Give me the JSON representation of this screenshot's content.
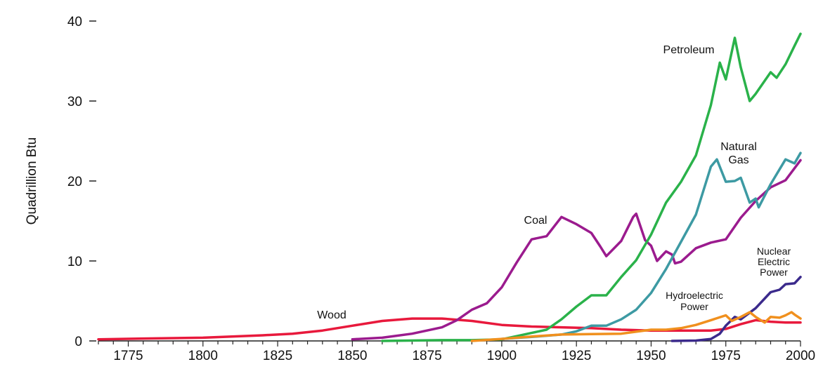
{
  "chart_data": {
    "type": "line",
    "title": "",
    "xlabel": "",
    "ylabel": "Quadrillion Btu",
    "xlim": [
      1765,
      2000
    ],
    "ylim": [
      0,
      40
    ],
    "grid": false,
    "legend": "inline labels",
    "x_ticks": [
      1775,
      1800,
      1825,
      1850,
      1875,
      1900,
      1925,
      1950,
      1975,
      2000
    ],
    "y_ticks": [
      0,
      10,
      20,
      30,
      40
    ],
    "series": [
      {
        "name": "Wood",
        "color": "#e8193c",
        "label_lines": [
          "Wood"
        ],
        "points": [
          [
            1765,
            0.2
          ],
          [
            1780,
            0.3
          ],
          [
            1800,
            0.4
          ],
          [
            1820,
            0.7
          ],
          [
            1830,
            0.9
          ],
          [
            1840,
            1.3
          ],
          [
            1850,
            1.9
          ],
          [
            1860,
            2.5
          ],
          [
            1870,
            2.8
          ],
          [
            1880,
            2.8
          ],
          [
            1890,
            2.5
          ],
          [
            1900,
            2.0
          ],
          [
            1910,
            1.8
          ],
          [
            1920,
            1.7
          ],
          [
            1930,
            1.6
          ],
          [
            1940,
            1.4
          ],
          [
            1950,
            1.3
          ],
          [
            1960,
            1.3
          ],
          [
            1970,
            1.3
          ],
          [
            1975,
            1.5
          ],
          [
            1980,
            2.1
          ],
          [
            1985,
            2.6
          ],
          [
            1990,
            2.4
          ],
          [
            1995,
            2.3
          ],
          [
            2000,
            2.3
          ]
        ]
      },
      {
        "name": "Coal",
        "color": "#9b1b8e",
        "label_lines": [
          "Coal"
        ],
        "points": [
          [
            1850,
            0.2
          ],
          [
            1860,
            0.4
          ],
          [
            1870,
            0.9
          ],
          [
            1880,
            1.7
          ],
          [
            1885,
            2.6
          ],
          [
            1890,
            3.9
          ],
          [
            1895,
            4.7
          ],
          [
            1900,
            6.7
          ],
          [
            1905,
            9.8
          ],
          [
            1910,
            12.7
          ],
          [
            1915,
            13.1
          ],
          [
            1920,
            15.5
          ],
          [
            1925,
            14.6
          ],
          [
            1930,
            13.5
          ],
          [
            1933,
            11.8
          ],
          [
            1935,
            10.6
          ],
          [
            1940,
            12.5
          ],
          [
            1944,
            15.5
          ],
          [
            1945,
            15.9
          ],
          [
            1948,
            12.6
          ],
          [
            1950,
            11.9
          ],
          [
            1952,
            10.0
          ],
          [
            1955,
            11.2
          ],
          [
            1957,
            10.8
          ],
          [
            1958,
            9.7
          ],
          [
            1960,
            9.9
          ],
          [
            1965,
            11.6
          ],
          [
            1970,
            12.3
          ],
          [
            1975,
            12.7
          ],
          [
            1980,
            15.4
          ],
          [
            1985,
            17.5
          ],
          [
            1990,
            19.2
          ],
          [
            1995,
            20.1
          ],
          [
            2000,
            22.6
          ]
        ]
      },
      {
        "name": "Petroleum",
        "color": "#2ab24a",
        "label_lines": [
          "Petroleum"
        ],
        "points": [
          [
            1860,
            0.0
          ],
          [
            1880,
            0.1
          ],
          [
            1890,
            0.1
          ],
          [
            1900,
            0.2
          ],
          [
            1905,
            0.6
          ],
          [
            1910,
            1.0
          ],
          [
            1915,
            1.4
          ],
          [
            1920,
            2.7
          ],
          [
            1925,
            4.3
          ],
          [
            1930,
            5.7
          ],
          [
            1935,
            5.7
          ],
          [
            1940,
            8.0
          ],
          [
            1945,
            10.1
          ],
          [
            1950,
            13.3
          ],
          [
            1955,
            17.3
          ],
          [
            1960,
            19.9
          ],
          [
            1965,
            23.2
          ],
          [
            1970,
            29.5
          ],
          [
            1973,
            34.8
          ],
          [
            1975,
            32.7
          ],
          [
            1978,
            37.9
          ],
          [
            1980,
            34.2
          ],
          [
            1983,
            30.0
          ],
          [
            1985,
            30.9
          ],
          [
            1990,
            33.6
          ],
          [
            1992,
            32.9
          ],
          [
            1995,
            34.6
          ],
          [
            1998,
            36.9
          ],
          [
            2000,
            38.4
          ]
        ]
      },
      {
        "name": "Natural Gas",
        "color": "#3d9aa3",
        "label_lines": [
          "Natural",
          "Gas"
        ],
        "points": [
          [
            1900,
            0.25
          ],
          [
            1910,
            0.5
          ],
          [
            1920,
            0.8
          ],
          [
            1925,
            1.2
          ],
          [
            1930,
            1.9
          ],
          [
            1935,
            1.9
          ],
          [
            1940,
            2.7
          ],
          [
            1945,
            3.9
          ],
          [
            1950,
            6.0
          ],
          [
            1955,
            9.0
          ],
          [
            1960,
            12.4
          ],
          [
            1965,
            15.8
          ],
          [
            1970,
            21.8
          ],
          [
            1972,
            22.7
          ],
          [
            1975,
            19.9
          ],
          [
            1978,
            20.0
          ],
          [
            1980,
            20.4
          ],
          [
            1983,
            17.3
          ],
          [
            1985,
            17.8
          ],
          [
            1986,
            16.7
          ],
          [
            1990,
            19.6
          ],
          [
            1995,
            22.7
          ],
          [
            1998,
            22.2
          ],
          [
            2000,
            23.5
          ]
        ]
      },
      {
        "name": "Nuclear Electric Power",
        "color": "#3b2a8c",
        "label_lines": [
          "Nuclear",
          "Electric",
          "Power"
        ],
        "points": [
          [
            1957,
            0.0
          ],
          [
            1965,
            0.04
          ],
          [
            1970,
            0.24
          ],
          [
            1973,
            0.9
          ],
          [
            1975,
            1.9
          ],
          [
            1978,
            3.0
          ],
          [
            1980,
            2.7
          ],
          [
            1985,
            4.1
          ],
          [
            1990,
            6.1
          ],
          [
            1993,
            6.4
          ],
          [
            1995,
            7.1
          ],
          [
            1998,
            7.2
          ],
          [
            2000,
            8.0
          ]
        ]
      },
      {
        "name": "Hydroelectric Power",
        "color": "#f0901e",
        "label_lines": [
          "Hydroelectric",
          "Power"
        ],
        "points": [
          [
            1890,
            0.0
          ],
          [
            1900,
            0.25
          ],
          [
            1910,
            0.55
          ],
          [
            1920,
            0.8
          ],
          [
            1930,
            0.85
          ],
          [
            1940,
            0.9
          ],
          [
            1950,
            1.4
          ],
          [
            1955,
            1.4
          ],
          [
            1960,
            1.6
          ],
          [
            1965,
            2.0
          ],
          [
            1970,
            2.6
          ],
          [
            1975,
            3.2
          ],
          [
            1977,
            2.5
          ],
          [
            1980,
            3.0
          ],
          [
            1983,
            3.6
          ],
          [
            1985,
            3.0
          ],
          [
            1988,
            2.3
          ],
          [
            1990,
            3.0
          ],
          [
            1993,
            2.9
          ],
          [
            1995,
            3.2
          ],
          [
            1997,
            3.6
          ],
          [
            1998,
            3.3
          ],
          [
            2000,
            2.8
          ]
        ]
      }
    ]
  }
}
